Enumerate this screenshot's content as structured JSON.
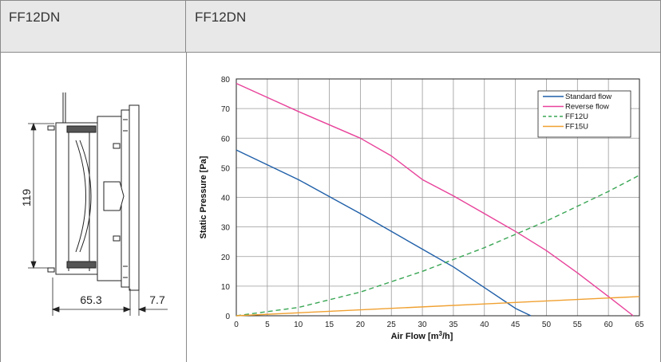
{
  "header": {
    "left_title": "FF12DN",
    "right_title": "FF12DN"
  },
  "drawing": {
    "dim_height": "119",
    "dim_depth": "65.3",
    "dim_flange": "7.7"
  },
  "chart_data": {
    "type": "line",
    "title": "",
    "xlabel_main": "Air Flow [m",
    "xlabel_sup": "3",
    "xlabel_end": "/h]",
    "ylabel": "Static Pressure [Pa]",
    "xlim": [
      0,
      65
    ],
    "ylim": [
      0,
      80
    ],
    "xticks": [
      "0",
      "5",
      "10",
      "15",
      "20",
      "25",
      "30",
      "35",
      "40",
      "45",
      "50",
      "55",
      "60",
      "65"
    ],
    "yticks": [
      "0",
      "10",
      "20",
      "30",
      "40",
      "50",
      "60",
      "70",
      "80"
    ],
    "grid": true,
    "legend_position": "top-right",
    "series": [
      {
        "name": "Standard flow",
        "color": "#1f5fa8",
        "dash": "",
        "x": [
          0,
          10,
          20,
          30,
          35,
          40,
          45,
          47.5
        ],
        "y": [
          56,
          46,
          34.5,
          22.5,
          16.5,
          9.5,
          2.5,
          0
        ]
      },
      {
        "name": "Reverse flow",
        "color": "#e8429a",
        "dash": "",
        "x": [
          0,
          10,
          20,
          25,
          30,
          35,
          40,
          45,
          50,
          55,
          60,
          64
        ],
        "y": [
          78.5,
          69,
          60,
          54,
          46,
          40.5,
          34.5,
          28.5,
          22,
          14.5,
          6.5,
          0
        ]
      },
      {
        "name": "FF12U",
        "color": "#3aa655",
        "dash": "6,4",
        "x": [
          0,
          10,
          20,
          30,
          40,
          50,
          60,
          65
        ],
        "y": [
          0,
          2.8,
          8,
          15,
          23,
          32,
          42,
          47.5
        ]
      },
      {
        "name": "FF15U",
        "color": "#f0a030",
        "dash": "",
        "x": [
          0,
          65
        ],
        "y": [
          0,
          6.5
        ]
      }
    ]
  }
}
